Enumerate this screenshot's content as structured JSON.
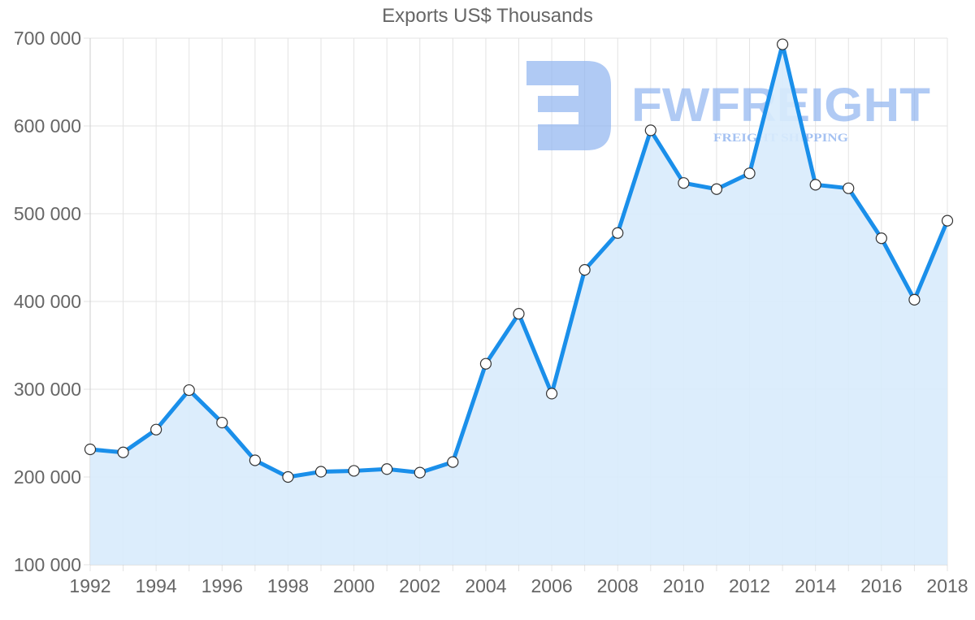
{
  "chart_data": {
    "type": "line",
    "title": "Exports US$ Thousands",
    "xlabel": "",
    "ylabel": "",
    "x": [
      1992,
      1993,
      1994,
      1995,
      1996,
      1997,
      1998,
      1999,
      2000,
      2001,
      2002,
      2003,
      2004,
      2005,
      2006,
      2007,
      2008,
      2009,
      2010,
      2011,
      2012,
      2013,
      2014,
      2015,
      2016,
      2017,
      2018
    ],
    "series": [
      {
        "name": "Exports US$ Thousands",
        "values": [
          231500,
          228000,
          254000,
          299000,
          262000,
          219000,
          200000,
          206000,
          207000,
          209000,
          205000,
          217000,
          329000,
          386000,
          295000,
          436000,
          478000,
          595000,
          535000,
          528000,
          546000,
          693000,
          533000,
          529000,
          472000,
          402000,
          492000
        ]
      }
    ],
    "ylim": [
      100000,
      700000
    ],
    "yticks": [
      100000,
      200000,
      300000,
      400000,
      500000,
      600000,
      700000
    ],
    "ytick_labels": [
      "100 000",
      "200 000",
      "300 000",
      "400 000",
      "500 000",
      "600 000",
      "700 000"
    ],
    "xtick_labels": [
      "1992",
      "1994",
      "1996",
      "1998",
      "2000",
      "2002",
      "2004",
      "2006",
      "2008",
      "2010",
      "2012",
      "2014",
      "2016",
      "2018"
    ],
    "grid": true,
    "fill_area": true,
    "legend": null,
    "colors": {
      "line": "#1a8fea",
      "fill": "#d8ebfc",
      "grid": "#e3e3e3",
      "text": "#666666",
      "point_fill": "#ffffff",
      "point_stroke": "#333333"
    }
  },
  "watermark": {
    "brand": "FWFREIGHT",
    "tagline": "FREIGHT SHIPPING",
    "color": "#8fb3ef"
  }
}
